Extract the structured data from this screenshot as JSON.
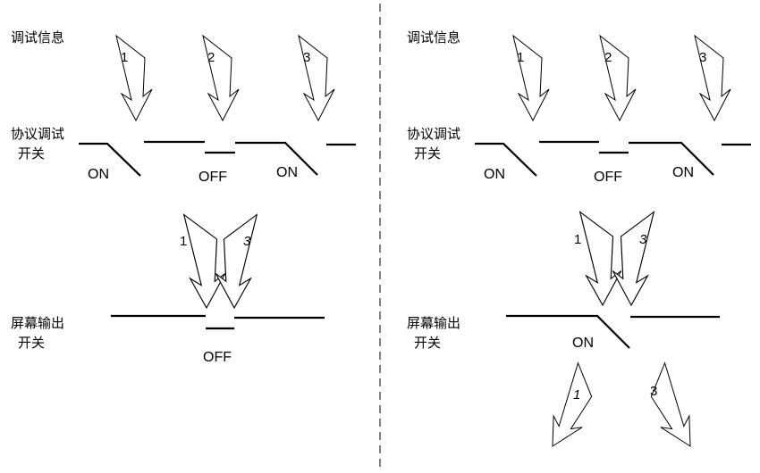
{
  "labels": {
    "debug_info": "调试信息",
    "protocol_switch_l1": "协议调试",
    "protocol_switch_l2": "开关",
    "screen_switch_l1": "屏幕输出",
    "screen_switch_l2": "开关"
  },
  "states": {
    "on": "ON",
    "off": "OFF"
  },
  "channels": {
    "c1": "1",
    "c2": "2",
    "c3": "3"
  },
  "panels": [
    {
      "id": "left",
      "protocol_switches": [
        "ON",
        "OFF",
        "ON"
      ],
      "screen_switch": "OFF"
    },
    {
      "id": "right",
      "protocol_switches": [
        "ON",
        "OFF",
        "ON"
      ],
      "screen_switch": "ON"
    }
  ]
}
